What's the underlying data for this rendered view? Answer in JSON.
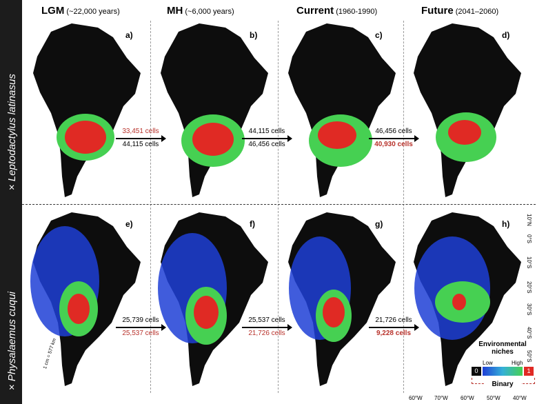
{
  "species": [
    {
      "prefix": "×",
      "name": "Leptodactylus latinasus"
    },
    {
      "prefix": "×",
      "name": "Physalaemus cuqui"
    }
  ],
  "periods": [
    {
      "bold": "LGM",
      "sub": "(~22,000 years)"
    },
    {
      "bold": "MH",
      "sub": "(~6,000 years)"
    },
    {
      "bold": "Current",
      "sub": "(1960-1990)"
    },
    {
      "bold": "Future",
      "sub": "(2041–2060)"
    }
  ],
  "panels": [
    "a)",
    "b)",
    "c)",
    "d)",
    "e)",
    "f)",
    "g)",
    "h)"
  ],
  "transitions": {
    "row1": [
      {
        "top": "33,451 cells",
        "bottom": "44,115 cells",
        "top_color": "#b8312a",
        "bottom_color": "#1a1a1a",
        "bottom_bold": false
      },
      {
        "top": "44,115 cells",
        "bottom": "46,456 cells",
        "top_color": "#1a1a1a",
        "bottom_color": "#1a1a1a",
        "bottom_bold": false
      },
      {
        "top": "46,456 cells",
        "bottom": "40,930 cells",
        "top_color": "#1a1a1a",
        "bottom_color": "#b8312a",
        "bottom_bold": true
      }
    ],
    "row2": [
      {
        "top": "25,739 cells",
        "bottom": "25,537 cells",
        "top_color": "#1a1a1a",
        "bottom_color": "#b8312a",
        "bottom_bold": false
      },
      {
        "top": "25,537 cells",
        "bottom": "21,726 cells",
        "top_color": "#1a1a1a",
        "bottom_color": "#b8312a",
        "bottom_bold": false
      },
      {
        "top": "21,726 cells",
        "bottom": "9,228 cells",
        "top_color": "#1a1a1a",
        "bottom_color": "#b8312a",
        "bottom_bold": true
      }
    ]
  },
  "latitude_labels": [
    "10°N",
    "0°S",
    "10°S",
    "20°S",
    "30°S",
    "40°S",
    "50°S"
  ],
  "longitude_labels": [
    "60°W",
    "70°W",
    "60°W",
    "50°W",
    "40°W"
  ],
  "legend": {
    "title": "Environmental niches",
    "low": "Low",
    "high": "High",
    "zero": "0",
    "one": "1",
    "binary": "Binary"
  },
  "scale_label": "1 cm = 577 km",
  "colors": {
    "continent": "#0d0d0d",
    "niche_low": "#1f3fd6",
    "niche_mid": "#35b0d8",
    "niche_high": "#46d052",
    "binary_presence": "#e02a24"
  }
}
